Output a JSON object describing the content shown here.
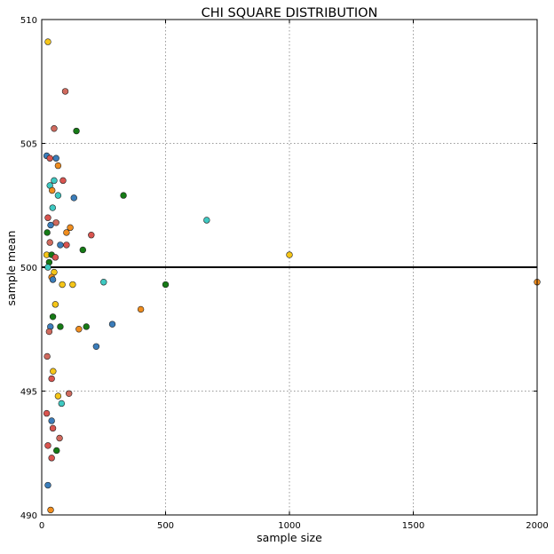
{
  "chart_data": {
    "type": "scatter",
    "title": "CHI SQUARE DISTRIBUTION",
    "xlabel": "sample size",
    "ylabel": "sample mean",
    "xlim": [
      0,
      2000
    ],
    "ylim": [
      490,
      510
    ],
    "xticks": [
      "0",
      "500",
      "1000",
      "1500",
      "2000"
    ],
    "yticks": [
      "490",
      "495",
      "500",
      "505",
      "510"
    ],
    "grid": true,
    "reference_line": {
      "y": 500,
      "color": "#000000"
    },
    "colors": {
      "blue": "#3b7dba",
      "red": "#d9544f",
      "orange": "#f08d1e",
      "green": "#157a15",
      "cyan": "#3ec9c2",
      "yellow": "#f5c518",
      "salmon": "#d06a5e"
    },
    "points": [
      {
        "x": 25,
        "y": 509.1,
        "c": "yellow"
      },
      {
        "x": 95,
        "y": 507.1,
        "c": "salmon"
      },
      {
        "x": 50,
        "y": 505.6,
        "c": "salmon"
      },
      {
        "x": 140,
        "y": 505.5,
        "c": "green"
      },
      {
        "x": 20,
        "y": 504.5,
        "c": "blue"
      },
      {
        "x": 33,
        "y": 504.4,
        "c": "red"
      },
      {
        "x": 58,
        "y": 504.4,
        "c": "blue"
      },
      {
        "x": 66,
        "y": 504.1,
        "c": "orange"
      },
      {
        "x": 86,
        "y": 503.5,
        "c": "red"
      },
      {
        "x": 50,
        "y": 503.5,
        "c": "cyan"
      },
      {
        "x": 33,
        "y": 503.3,
        "c": "cyan"
      },
      {
        "x": 42,
        "y": 503.1,
        "c": "orange"
      },
      {
        "x": 66,
        "y": 502.9,
        "c": "cyan"
      },
      {
        "x": 330,
        "y": 502.9,
        "c": "green"
      },
      {
        "x": 130,
        "y": 502.8,
        "c": "blue"
      },
      {
        "x": 44,
        "y": 502.4,
        "c": "cyan"
      },
      {
        "x": 25,
        "y": 502.0,
        "c": "red"
      },
      {
        "x": 666,
        "y": 501.9,
        "c": "cyan"
      },
      {
        "x": 36,
        "y": 501.7,
        "c": "blue"
      },
      {
        "x": 58,
        "y": 501.8,
        "c": "salmon"
      },
      {
        "x": 115,
        "y": 501.6,
        "c": "orange"
      },
      {
        "x": 100,
        "y": 501.4,
        "c": "orange"
      },
      {
        "x": 22,
        "y": 501.4,
        "c": "green"
      },
      {
        "x": 200,
        "y": 501.3,
        "c": "red"
      },
      {
        "x": 33,
        "y": 501.0,
        "c": "salmon"
      },
      {
        "x": 100,
        "y": 500.9,
        "c": "red"
      },
      {
        "x": 75,
        "y": 500.9,
        "c": "blue"
      },
      {
        "x": 166,
        "y": 500.7,
        "c": "green"
      },
      {
        "x": 20,
        "y": 500.5,
        "c": "yellow"
      },
      {
        "x": 40,
        "y": 500.5,
        "c": "green"
      },
      {
        "x": 55,
        "y": 500.4,
        "c": "red"
      },
      {
        "x": 1000,
        "y": 500.5,
        "c": "yellow"
      },
      {
        "x": 30,
        "y": 500.2,
        "c": "green"
      },
      {
        "x": 25,
        "y": 500.0,
        "c": "cyan"
      },
      {
        "x": 50,
        "y": 499.8,
        "c": "yellow"
      },
      {
        "x": 40,
        "y": 499.6,
        "c": "orange"
      },
      {
        "x": 45,
        "y": 499.5,
        "c": "blue"
      },
      {
        "x": 250,
        "y": 499.4,
        "c": "cyan"
      },
      {
        "x": 83,
        "y": 499.3,
        "c": "yellow"
      },
      {
        "x": 125,
        "y": 499.3,
        "c": "yellow"
      },
      {
        "x": 500,
        "y": 499.3,
        "c": "green"
      },
      {
        "x": 2000,
        "y": 499.4,
        "c": "orange"
      },
      {
        "x": 55,
        "y": 498.5,
        "c": "yellow"
      },
      {
        "x": 400,
        "y": 498.3,
        "c": "orange"
      },
      {
        "x": 45,
        "y": 498.0,
        "c": "green"
      },
      {
        "x": 285,
        "y": 497.7,
        "c": "blue"
      },
      {
        "x": 75,
        "y": 497.6,
        "c": "green"
      },
      {
        "x": 180,
        "y": 497.6,
        "c": "green"
      },
      {
        "x": 35,
        "y": 497.6,
        "c": "blue"
      },
      {
        "x": 150,
        "y": 497.5,
        "c": "orange"
      },
      {
        "x": 30,
        "y": 497.4,
        "c": "salmon"
      },
      {
        "x": 220,
        "y": 496.8,
        "c": "blue"
      },
      {
        "x": 22,
        "y": 496.4,
        "c": "salmon"
      },
      {
        "x": 46,
        "y": 495.8,
        "c": "yellow"
      },
      {
        "x": 40,
        "y": 495.5,
        "c": "red"
      },
      {
        "x": 110,
        "y": 494.9,
        "c": "salmon"
      },
      {
        "x": 66,
        "y": 494.8,
        "c": "yellow"
      },
      {
        "x": 80,
        "y": 494.5,
        "c": "cyan"
      },
      {
        "x": 20,
        "y": 494.1,
        "c": "red"
      },
      {
        "x": 40,
        "y": 493.8,
        "c": "blue"
      },
      {
        "x": 45,
        "y": 493.5,
        "c": "red"
      },
      {
        "x": 72,
        "y": 493.1,
        "c": "salmon"
      },
      {
        "x": 25,
        "y": 492.8,
        "c": "red"
      },
      {
        "x": 60,
        "y": 492.6,
        "c": "green"
      },
      {
        "x": 40,
        "y": 492.3,
        "c": "red"
      },
      {
        "x": 25,
        "y": 491.2,
        "c": "blue"
      },
      {
        "x": 36,
        "y": 490.2,
        "c": "orange"
      }
    ]
  }
}
